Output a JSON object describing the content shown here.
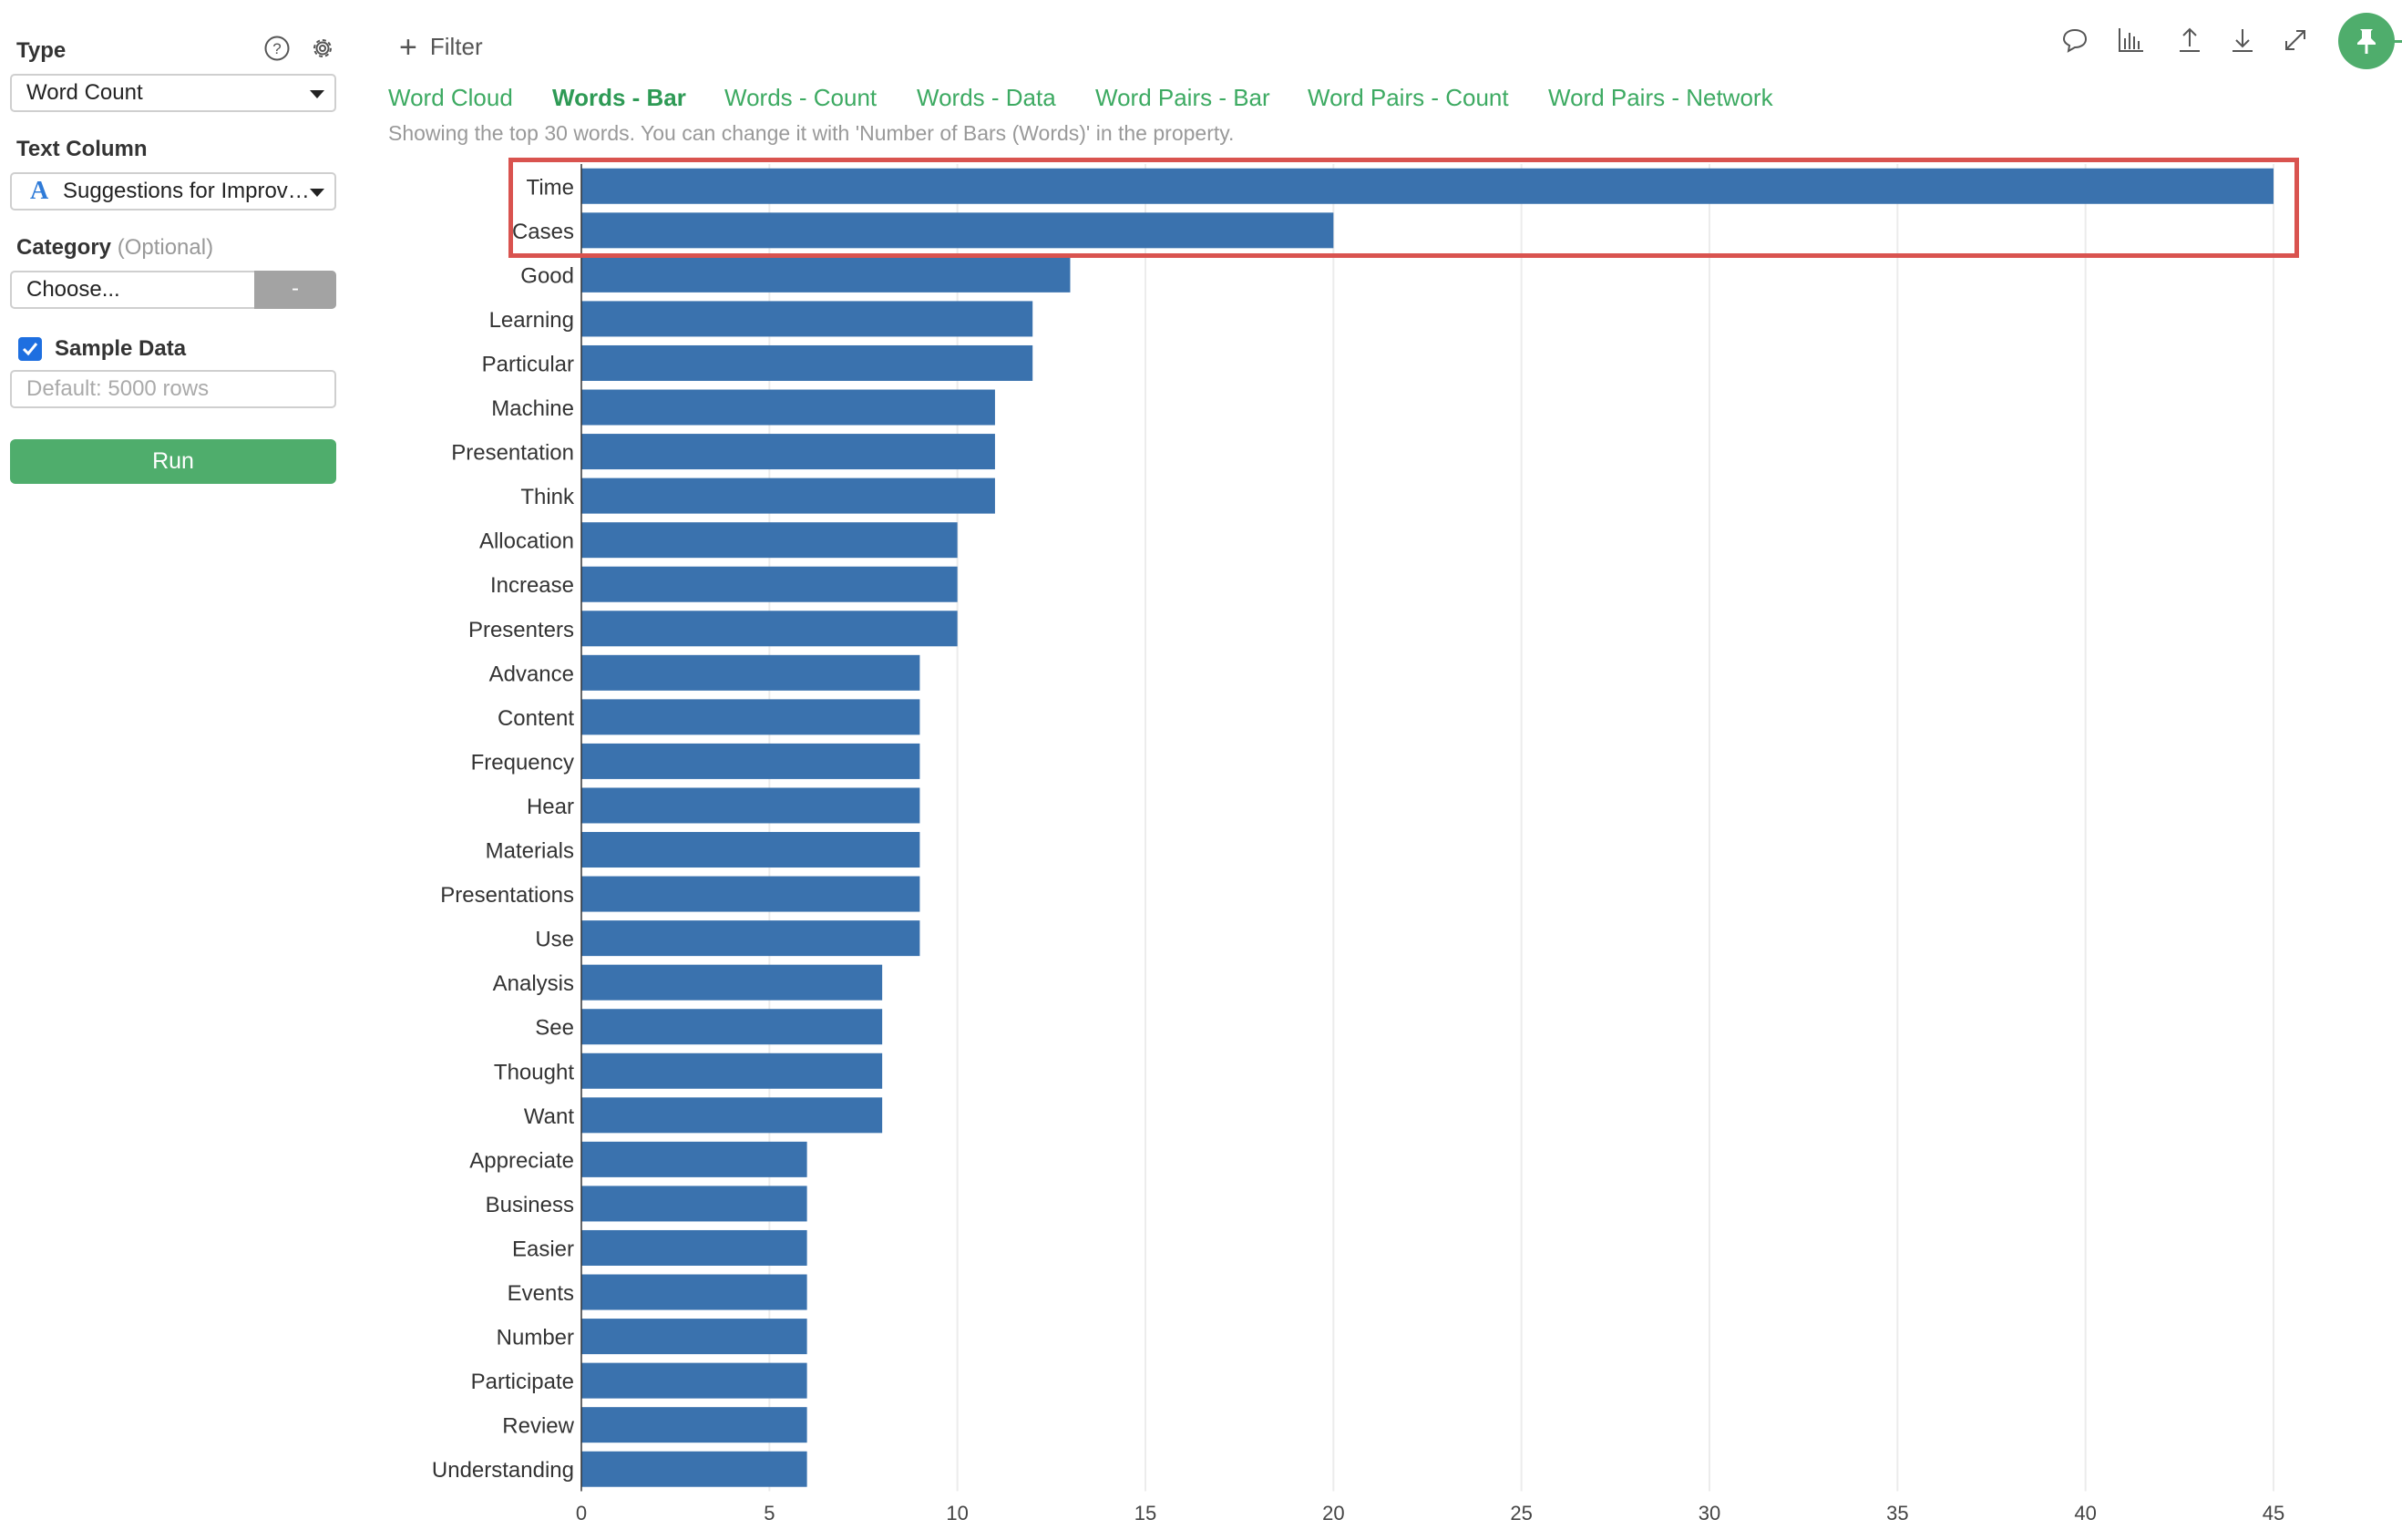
{
  "sidebar": {
    "type_label": "Type",
    "type_value": "Word Count",
    "text_column_label": "Text Column",
    "text_column_value": "Suggestions for Improv…",
    "category_label": "Category",
    "category_optional": "(Optional)",
    "category_value": "Choose...",
    "category_button": "-",
    "sample_data_label": "Sample Data",
    "sample_data_checked": true,
    "sample_rows_placeholder": "Default: 5000 rows",
    "run_label": "Run"
  },
  "toolbar": {
    "filter_label": "Filter",
    "icons": [
      "comment-icon",
      "chart-icon",
      "upload-icon",
      "download-icon",
      "expand-icon",
      "pin-icon"
    ]
  },
  "tabs": [
    {
      "label": "Word Cloud",
      "active": false
    },
    {
      "label": "Words - Bar",
      "active": true
    },
    {
      "label": "Words - Count",
      "active": false
    },
    {
      "label": "Words - Data",
      "active": false
    },
    {
      "label": "Word Pairs - Bar",
      "active": false
    },
    {
      "label": "Word Pairs - Count",
      "active": false
    },
    {
      "label": "Word Pairs - Network",
      "active": false
    }
  ],
  "note": "Showing the top 30 words. You can change it with 'Number of Bars (Words)' in the property.",
  "colors": {
    "accent": "#3daa62",
    "bar": "#3a72ae",
    "highlight": "#d9534f"
  },
  "chart_data": {
    "type": "bar",
    "orientation": "horizontal",
    "categories": [
      "Time",
      "Cases",
      "Good",
      "Learning",
      "Particular",
      "Machine",
      "Presentation",
      "Think",
      "Allocation",
      "Increase",
      "Presenters",
      "Advance",
      "Content",
      "Frequency",
      "Hear",
      "Materials",
      "Presentations",
      "Use",
      "Analysis",
      "See",
      "Thought",
      "Want",
      "Appreciate",
      "Business",
      "Easier",
      "Events",
      "Number",
      "Participate",
      "Review",
      "Understanding"
    ],
    "values": [
      45,
      20,
      13,
      12,
      12,
      11,
      11,
      11,
      10,
      10,
      10,
      9,
      9,
      9,
      9,
      9,
      9,
      9,
      8,
      8,
      8,
      8,
      6,
      6,
      6,
      6,
      6,
      6,
      6,
      6
    ],
    "xticks": [
      0,
      5,
      10,
      15,
      20,
      25,
      30,
      35,
      40,
      45
    ],
    "xlim": [
      0,
      45
    ],
    "grid": true,
    "highlighted_categories": [
      "Time",
      "Cases"
    ]
  }
}
